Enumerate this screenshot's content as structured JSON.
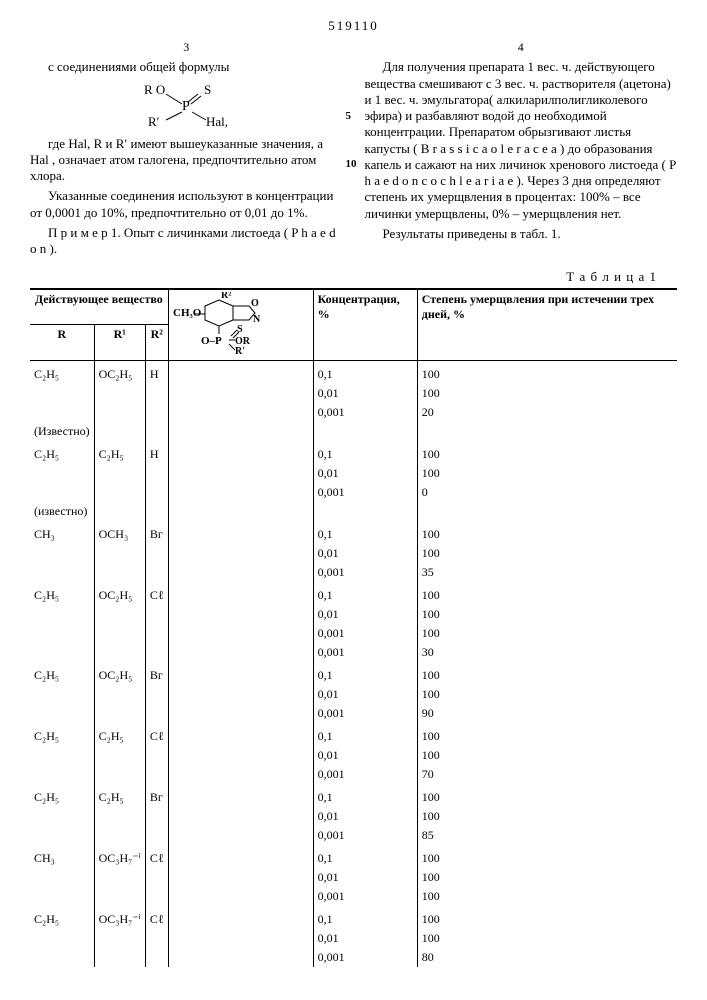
{
  "docNumber": "519110",
  "leftColNum": "3",
  "rightColNum": "4",
  "lineMark5": "5",
  "lineMark10": "10",
  "left": {
    "p1": "с соединениями общей формулы",
    "formula_RO": "R O",
    "formula_P": "P",
    "formula_S": "S",
    "formula_R1": "R′",
    "formula_Hal": "Hal,",
    "p2": "где Hal, R и R′ имеют вышеуказанные значения, а Hal , означает атом галогена, предпочтительно атом хлора.",
    "p3": "Указанные соединения используют в концентрации от 0,0001 до 10%, предпочтительно от 0,01 до 1%.",
    "p4": "П р и м е р  1. Опыт с личинками листоеда ( P h a e d o n )."
  },
  "right": {
    "p1": "Для получения препарата 1 вес. ч. действующего вещества смешивают с 3 вес. ч. растворителя (ацетона) и 1 вес. ч. эмульгатора( алкиларилполигликолевого эфира) и разбавляют водой до необходимой концентрации. Препаратом обрызгивают листья капусты ( B r a s s i c a  o l e r a c e a ) до образования капель и сажают на них личинок хренового листоеда ( P h a e d o n  c o c h l e a r i a e ). Через 3 дня определяют степень их умерщвления в процентах: 100% – все личинки умерщвлены, 0% – умерщвления нет.",
    "p2": "Результаты приведены в табл. 1."
  },
  "tableTitle": "Т а б л и ц а 1",
  "headers": {
    "group": "Действующее вещество",
    "R": "R",
    "R1": "R¹",
    "R2": "R²",
    "conc": "Концентрация, %",
    "mort": "Степень умерщвления при истечении трех дней, %"
  },
  "struct": {
    "CH3O": "CH₃O",
    "OR": "OR",
    "R1": "R′",
    "R2": "R²",
    "OPS": "O–P",
    "S": "S"
  },
  "rows": [
    {
      "R": "C₂H₅",
      "R1": "OC₂H₅",
      "R2": "H",
      "note": "(Известно)",
      "data": [
        [
          "0,1",
          "100"
        ],
        [
          "0,01",
          "100"
        ],
        [
          "0,001",
          "20"
        ]
      ]
    },
    {
      "R": "C₂H₅",
      "R1": "C₂H₅",
      "R2": "H",
      "note": "(известно)",
      "data": [
        [
          "0,1",
          "100"
        ],
        [
          "0,01",
          "100"
        ],
        [
          "0,001",
          "0"
        ]
      ]
    },
    {
      "R": "CH₃",
      "R1": "OCH₃",
      "R2": "Bг",
      "data": [
        [
          "0,1",
          "100"
        ],
        [
          "0,01",
          "100"
        ],
        [
          "0,001",
          "35"
        ]
      ]
    },
    {
      "R": "C₂H₅",
      "R1": "OC₂H₅",
      "R2": "Cℓ",
      "data": [
        [
          "0,1",
          "100"
        ],
        [
          "0,01",
          "100"
        ],
        [
          "0,001",
          "100"
        ],
        [
          "0,001",
          "30"
        ]
      ]
    },
    {
      "R": "C₂H₅",
      "R1": "OC₂H₅",
      "R2": "Bг",
      "data": [
        [
          "0,1",
          "100"
        ],
        [
          "0,01",
          "100"
        ],
        [
          "0,001",
          "90"
        ]
      ]
    },
    {
      "R": "C₂H₅",
      "R1": "C₂H₅",
      "R2": "Cℓ",
      "data": [
        [
          "0,1",
          "100"
        ],
        [
          "0,01",
          "100"
        ],
        [
          "0,001",
          "70"
        ]
      ]
    },
    {
      "R": "C₂H₅",
      "R1": "C₂H₅",
      "R2": "Bг",
      "data": [
        [
          "0,1",
          "100"
        ],
        [
          "0,01",
          "100"
        ],
        [
          "0,001",
          "85"
        ]
      ]
    },
    {
      "R": "CH₃",
      "R1": "OC₃H₇⁻ⁱ",
      "R2": "Cℓ",
      "data": [
        [
          "0,1",
          "100"
        ],
        [
          "0,01",
          "100"
        ],
        [
          "0,001",
          "100"
        ]
      ]
    },
    {
      "R": "C₂H₅",
      "R1": "OC₃H₇⁻ⁱ",
      "R2": "Cℓ",
      "data": [
        [
          "0,1",
          "100"
        ],
        [
          "0,01",
          "100"
        ],
        [
          "0,001",
          "80"
        ]
      ]
    }
  ]
}
